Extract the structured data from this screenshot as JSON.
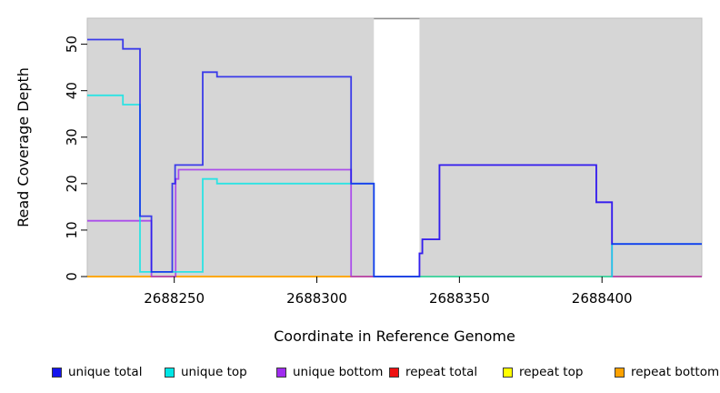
{
  "figure": {
    "background": "#ffffff",
    "plot_bg": "#d6d6d6",
    "plot_border": "#bdbdbd",
    "gap_border": "#8f8f8f",
    "tick_color": "#000000"
  },
  "chart_data": {
    "type": "line",
    "subtype": "step",
    "title": "",
    "xlabel": "Coordinate in Reference Genome",
    "ylabel": "Read Coverage Depth",
    "xlim": [
      2688219.5,
      2688435
    ],
    "ylim": [
      0,
      55.6
    ],
    "x_ticks": [
      2688250,
      2688300,
      2688350,
      2688400
    ],
    "x_tick_labels": [
      "2688250",
      "2688300",
      "2688350",
      "2688400"
    ],
    "y_ticks": [
      0,
      10,
      20,
      30,
      40,
      50
    ],
    "y_tick_labels": [
      "0",
      "10",
      "20",
      "30",
      "40",
      "50"
    ],
    "grid": false,
    "legend_position": "bottom",
    "gap_region": {
      "x_start": 2688320,
      "x_end": 2688336,
      "color": "#ffffff"
    },
    "series": [
      {
        "name": "repeat total",
        "color": "#ee1111",
        "opacity": 1,
        "steps": [
          [
            2688219.5,
            0
          ],
          [
            2688435,
            0
          ]
        ]
      },
      {
        "name": "repeat top",
        "color": "#ffff00",
        "opacity": 1,
        "steps": [
          [
            2688219.5,
            0
          ],
          [
            2688435,
            0
          ]
        ]
      },
      {
        "name": "repeat bottom",
        "color": "#ffa200",
        "opacity": 1,
        "steps": [
          [
            2688219.5,
            0
          ],
          [
            2688435,
            0
          ]
        ]
      },
      {
        "name": "unique bottom",
        "color": "#a02cf0",
        "opacity": 0.8,
        "steps": [
          [
            2688219.5,
            12
          ],
          [
            2688242,
            0
          ],
          [
            2688250.5,
            21
          ],
          [
            2688251.5,
            23
          ],
          [
            2688312,
            0
          ],
          [
            2688336,
            5
          ],
          [
            2688337,
            8
          ],
          [
            2688343,
            24
          ],
          [
            2688398,
            16
          ],
          [
            2688403.5,
            0
          ],
          [
            2688435,
            0
          ]
        ]
      },
      {
        "name": "unique top",
        "color": "#00e6e6",
        "opacity": 0.8,
        "steps": [
          [
            2688219.5,
            39
          ],
          [
            2688232,
            37
          ],
          [
            2688238,
            1
          ],
          [
            2688260,
            21
          ],
          [
            2688265,
            20
          ],
          [
            2688320,
            0
          ],
          [
            2688403.5,
            7
          ],
          [
            2688435,
            7
          ]
        ]
      },
      {
        "name": "unique total",
        "color": "#1414ee",
        "opacity": 0.8,
        "steps": [
          [
            2688219.5,
            51
          ],
          [
            2688232,
            49
          ],
          [
            2688238,
            13
          ],
          [
            2688242,
            1
          ],
          [
            2688249.3,
            20
          ],
          [
            2688250.3,
            24
          ],
          [
            2688260,
            44
          ],
          [
            2688265,
            43
          ],
          [
            2688312,
            20
          ],
          [
            2688320,
            0
          ],
          [
            2688336,
            5
          ],
          [
            2688337,
            8
          ],
          [
            2688343,
            24
          ],
          [
            2688398,
            16
          ],
          [
            2688403.5,
            7
          ],
          [
            2688435,
            7
          ]
        ]
      }
    ]
  },
  "legend": {
    "items": [
      {
        "label": "unique total",
        "color": "#1414ee"
      },
      {
        "label": "unique top",
        "color": "#00e6e6"
      },
      {
        "label": "unique bottom",
        "color": "#a02cf0"
      },
      {
        "label": "repeat total",
        "color": "#ee1111"
      },
      {
        "label": "repeat top",
        "color": "#ffff00"
      },
      {
        "label": "repeat bottom",
        "color": "#ffa200"
      }
    ]
  }
}
